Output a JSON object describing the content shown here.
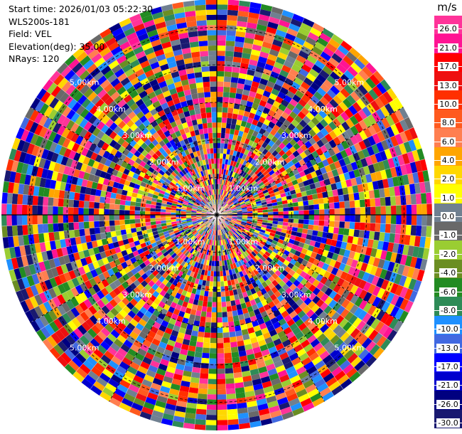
{
  "info": {
    "start_time": "Start time: 2026/01/03 05:22:30",
    "station": "WLS200s-181",
    "field": "Field: VEL",
    "elevation": "Elevation(deg): 35.00",
    "nrays": "NRays: 120"
  },
  "colorbar": {
    "unit": "m/s",
    "ticks": [
      "26.0",
      "21.0",
      "17.0",
      "13.0",
      "10.0",
      "8.0",
      "6.0",
      "4.0",
      "2.0",
      "1.0",
      "0.0",
      "-1.0",
      "-2.0",
      "-4.0",
      "-6.0",
      "-8.0",
      "-10.0",
      "-13.0",
      "-17.0",
      "-21.0",
      "-26.0",
      "-30.0"
    ],
    "colors": [
      "#ff3399",
      "#ff1493",
      "#ff0000",
      "#ee1010",
      "#ff3000",
      "#ff5a1e",
      "#ff7f50",
      "#ffa500",
      "#ffd700",
      "#ffff00",
      "#708090",
      "#696969",
      "#9acd32",
      "#6b8e23",
      "#228b22",
      "#2e8b57",
      "#1e90ff",
      "#4169e1",
      "#0000ff",
      "#0000cd",
      "#000080",
      "#191970"
    ]
  },
  "chart_data": {
    "type": "heatmap",
    "projection": "polar-ppi",
    "field": "VEL",
    "elevation_deg": 35.0,
    "n_rays": 120,
    "value_range_ms": [
      -30,
      30
    ],
    "range_rings_km": [
      1.0,
      2.0,
      3.0,
      4.0,
      5.0
    ],
    "ring_labels": [
      "1.00km",
      "2.00km",
      "3.00km",
      "4.00km",
      "5.00km"
    ],
    "spokes_deg": [
      0,
      30,
      60,
      90,
      120,
      150,
      180,
      210,
      240,
      270,
      300,
      330
    ],
    "grid": true
  }
}
